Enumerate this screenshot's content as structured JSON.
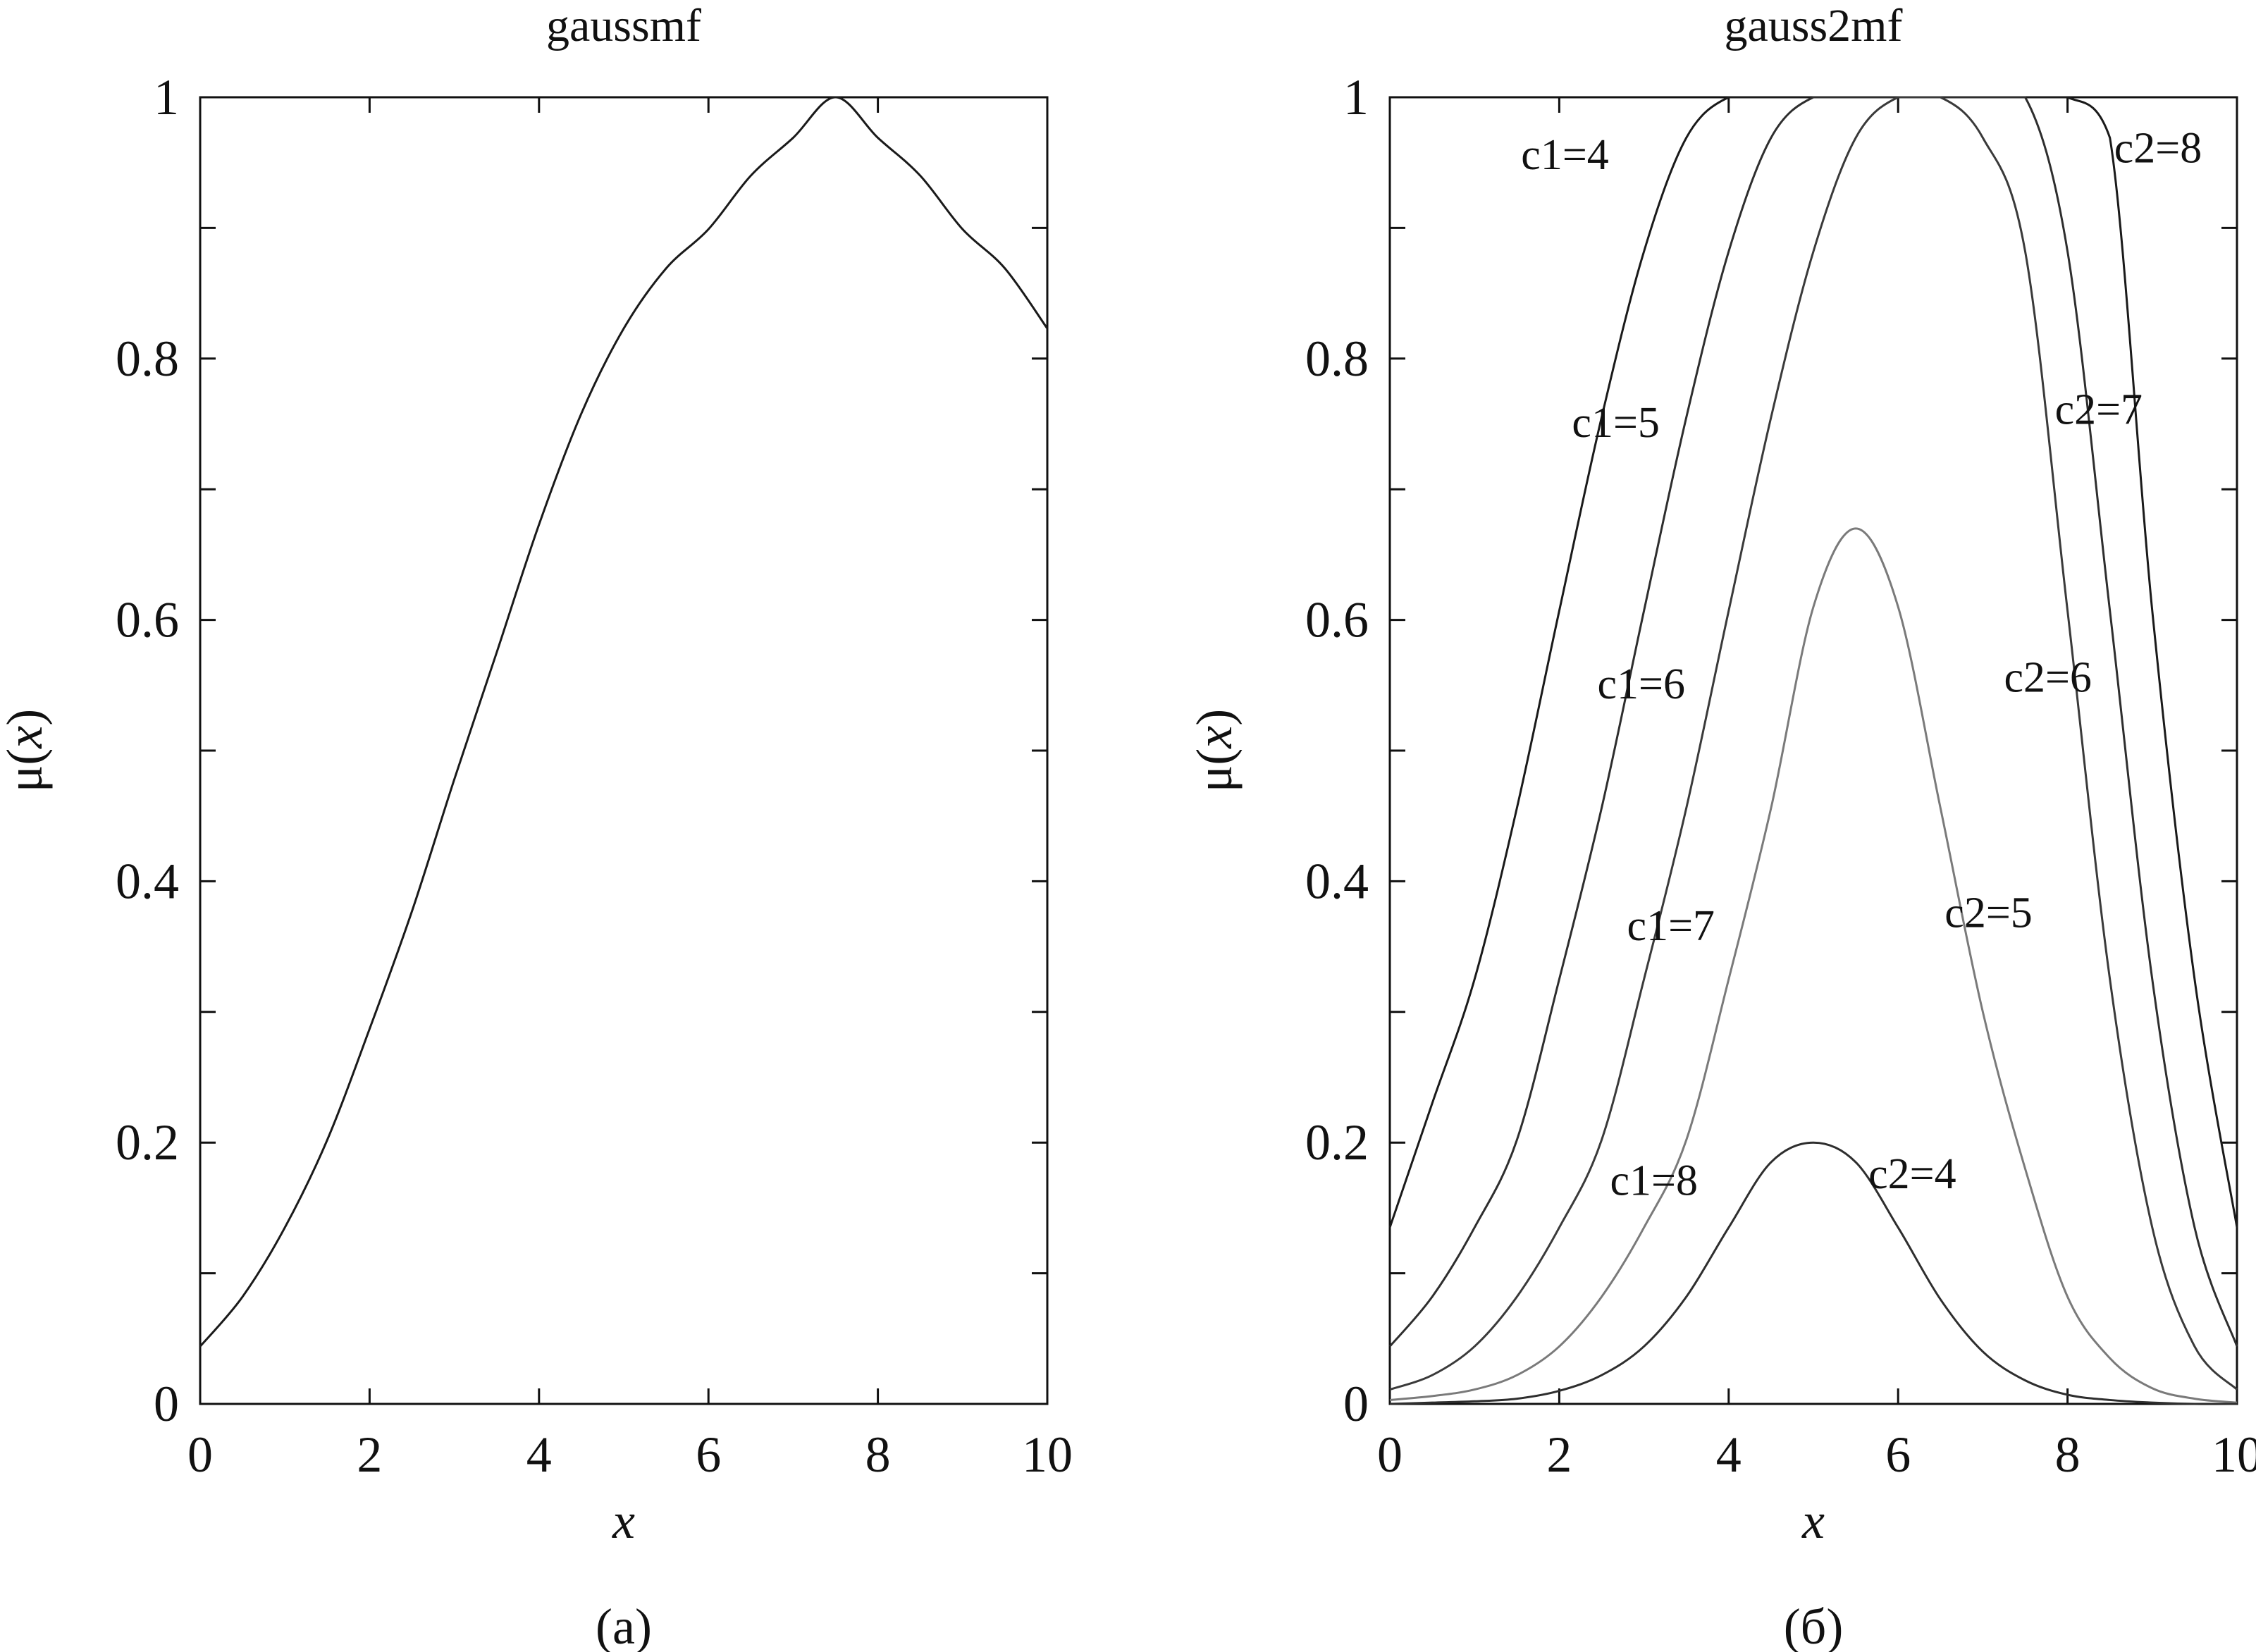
{
  "chart_data": [
    {
      "type": "line",
      "title": "gaussmf",
      "xlabel": "x",
      "ylabel_prefix": "μ(",
      "ylabel_var": "x",
      "ylabel_suffix": ")",
      "caption": "(а)",
      "xlim": [
        0,
        10
      ],
      "ylim": [
        0,
        1
      ],
      "xticks": [
        "0",
        "2",
        "4",
        "6",
        "8",
        "10"
      ],
      "yticks": [
        "0",
        "0.2",
        "0.4",
        "0.6",
        "0.8",
        "1"
      ],
      "color": "#1a1a1a",
      "x": [
        0,
        0.5,
        1,
        1.5,
        2,
        2.5,
        3,
        3.5,
        4,
        4.5,
        5,
        5.5,
        6,
        6.5,
        7,
        7.5,
        8,
        8.5,
        9,
        9.5,
        10
      ],
      "series": [
        {
          "values": [
            0.044,
            0.082,
            0.135,
            0.202,
            0.287,
            0.377,
            0.478,
            0.575,
            0.673,
            0.758,
            0.823,
            0.869,
            0.899,
            0.94,
            0.969,
            1.0,
            0.969,
            0.94,
            0.899,
            0.869,
            0.823
          ]
        }
      ]
    },
    {
      "type": "line",
      "title": "gauss2mf",
      "xlabel": "x",
      "ylabel_prefix": "μ(",
      "ylabel_var": "x",
      "ylabel_suffix": ")",
      "caption": "(б)",
      "xlim": [
        0,
        10
      ],
      "ylim": [
        0,
        1
      ],
      "xticks": [
        "0",
        "2",
        "4",
        "6",
        "8",
        "10"
      ],
      "yticks": [
        "0",
        "0.2",
        "0.4",
        "0.6",
        "0.8",
        "1"
      ],
      "x": [
        0,
        0.5,
        1,
        1.5,
        2,
        2.5,
        3,
        3.5,
        4,
        4.5,
        5,
        5.5,
        6,
        6.5,
        7,
        7.5,
        8,
        8.5,
        9,
        9.5,
        10
      ],
      "series": [
        {
          "color": "#1a1a1a",
          "values": [
            0.135,
            0.23,
            0.325,
            0.456,
            0.607,
            0.755,
            0.882,
            0.969,
            1.0,
            1.0,
            1.0,
            1.0,
            1.0,
            1.0,
            1.0,
            1.0,
            1.0,
            0.969,
            0.607,
            0.325,
            0.135
          ]
        },
        {
          "color": "#2e2e2e",
          "values": [
            0.044,
            0.082,
            0.135,
            0.202,
            0.325,
            0.456,
            0.607,
            0.755,
            0.882,
            0.969,
            1.0,
            1.0,
            1.0,
            1.0,
            1.0,
            1.0,
            0.882,
            0.607,
            0.325,
            0.135,
            0.044
          ]
        },
        {
          "color": "#3a3a3a",
          "values": [
            0.011,
            0.022,
            0.044,
            0.082,
            0.135,
            0.202,
            0.325,
            0.456,
            0.607,
            0.755,
            0.882,
            0.969,
            1.0,
            1.0,
            0.969,
            0.882,
            0.607,
            0.325,
            0.135,
            0.044,
            0.011
          ]
        },
        {
          "color": "#7a7a7a",
          "values": [
            0.003,
            0.006,
            0.011,
            0.022,
            0.044,
            0.082,
            0.135,
            0.202,
            0.325,
            0.456,
            0.61,
            0.67,
            0.61,
            0.456,
            0.3,
            0.18,
            0.082,
            0.035,
            0.012,
            0.004,
            0.001
          ]
        },
        {
          "color": "#2e2e2e",
          "values": [
            0.0,
            0.001,
            0.002,
            0.004,
            0.01,
            0.022,
            0.044,
            0.082,
            0.135,
            0.185,
            0.2,
            0.185,
            0.135,
            0.08,
            0.04,
            0.018,
            0.007,
            0.003,
            0.001,
            0.0,
            0.0
          ]
        }
      ],
      "annotations": [
        {
          "text": "c1=4",
          "x": 1.55,
          "y": 0.945
        },
        {
          "text": "c1=5",
          "x": 2.15,
          "y": 0.74
        },
        {
          "text": "c1=6",
          "x": 2.45,
          "y": 0.54
        },
        {
          "text": "c1=7",
          "x": 2.8,
          "y": 0.355
        },
        {
          "text": "c1=8",
          "x": 2.6,
          "y": 0.16
        },
        {
          "text": "c2=8",
          "x": 8.55,
          "y": 0.95
        },
        {
          "text": "c2=7",
          "x": 7.85,
          "y": 0.75
        },
        {
          "text": "c2=6",
          "x": 7.25,
          "y": 0.545
        },
        {
          "text": "c2=5",
          "x": 6.55,
          "y": 0.365
        },
        {
          "text": "c2=4",
          "x": 5.65,
          "y": 0.165
        }
      ]
    }
  ]
}
